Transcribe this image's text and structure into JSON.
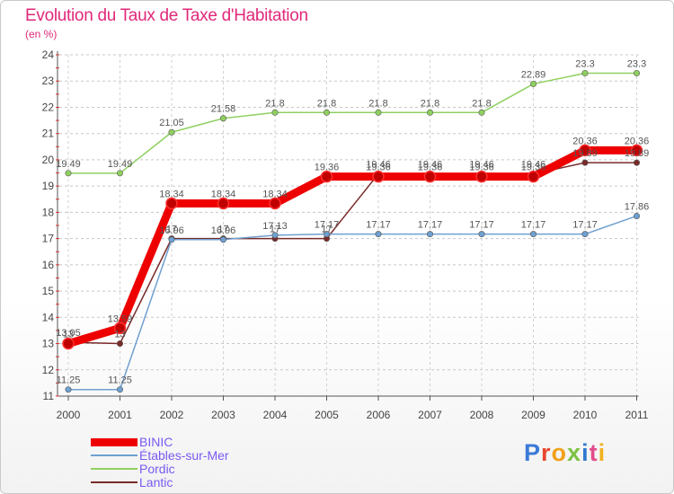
{
  "header": {
    "title": "Evolution du Taux de Taxe d'Habitation",
    "unit": "(en %)"
  },
  "brand": {
    "text": "Proxiti",
    "letters": [
      {
        "ch": "P",
        "color": "#3b7ad8"
      },
      {
        "ch": "r",
        "color": "#e8472e"
      },
      {
        "ch": "o",
        "color": "#f0a018"
      },
      {
        "ch": "x",
        "color": "#7cc142"
      },
      {
        "ch": "i",
        "color": "#2f78d0"
      },
      {
        "ch": "t",
        "color": "#e24b8b"
      },
      {
        "ch": "i",
        "color": "#f0b020"
      }
    ]
  },
  "chart_data": {
    "type": "line",
    "title": "Evolution du Taux de Taxe d'Habitation",
    "ylabel": "(en %)",
    "categories": [
      "2000",
      "2001",
      "2002",
      "2003",
      "2004",
      "2005",
      "2006",
      "2007",
      "2008",
      "2009",
      "2010",
      "2011"
    ],
    "ylim": [
      11,
      24
    ],
    "yticks": [
      11,
      12,
      13,
      14,
      15,
      16,
      17,
      18,
      19,
      20,
      21,
      22,
      23,
      24
    ],
    "grid": "horizontal-dashed",
    "legend_position": "bottom-left",
    "series": [
      {
        "name": "BINIC",
        "color": "#ee0000",
        "width": 9,
        "values": [
          13,
          13.59,
          18.34,
          18.34,
          18.34,
          19.36,
          19.36,
          19.36,
          19.36,
          19.36,
          20.36,
          20.36
        ],
        "labels": [
          "13",
          "13.59",
          "18.34",
          "18.34",
          "18.34",
          "19.36",
          "19.36",
          "19.36",
          "19.36",
          "19.36",
          "20.36",
          "20.36"
        ]
      },
      {
        "name": "Étables-sur-Mer",
        "color": "#6fa0d0",
        "width": 1.5,
        "values": [
          11.25,
          11.25,
          16.96,
          16.96,
          17.13,
          17.17,
          17.17,
          17.17,
          17.17,
          17.17,
          17.17,
          17.86
        ],
        "labels": [
          "11.25",
          "11.25",
          "16.96",
          "16.96",
          "17.13",
          "17.17",
          "17.17",
          "17.17",
          "17.17",
          "17.17",
          "17.17",
          "17.86"
        ]
      },
      {
        "name": "Pordic",
        "color": "#8fd060",
        "width": 1.5,
        "values": [
          19.49,
          19.49,
          21.05,
          21.58,
          21.8,
          21.8,
          21.8,
          21.8,
          21.8,
          22.89,
          23.3,
          23.3
        ],
        "labels": [
          "19.49",
          "19.49",
          "21.05",
          "21.58",
          "21.8",
          "21.8",
          "21.8",
          "21.8",
          "21.8",
          "22.89",
          "23.3",
          "23.3"
        ]
      },
      {
        "name": "Lantic",
        "color": "#7a2a2a",
        "width": 1.5,
        "values": [
          13.05,
          13,
          17,
          17,
          17,
          17,
          19.46,
          19.46,
          19.46,
          19.46,
          19.89,
          19.89
        ],
        "labels": [
          "13.05",
          "13",
          "17",
          "17",
          "17",
          "17",
          "19.46",
          "19.46",
          "19.46",
          "19.46",
          "19.89",
          "19.89"
        ]
      }
    ]
  }
}
